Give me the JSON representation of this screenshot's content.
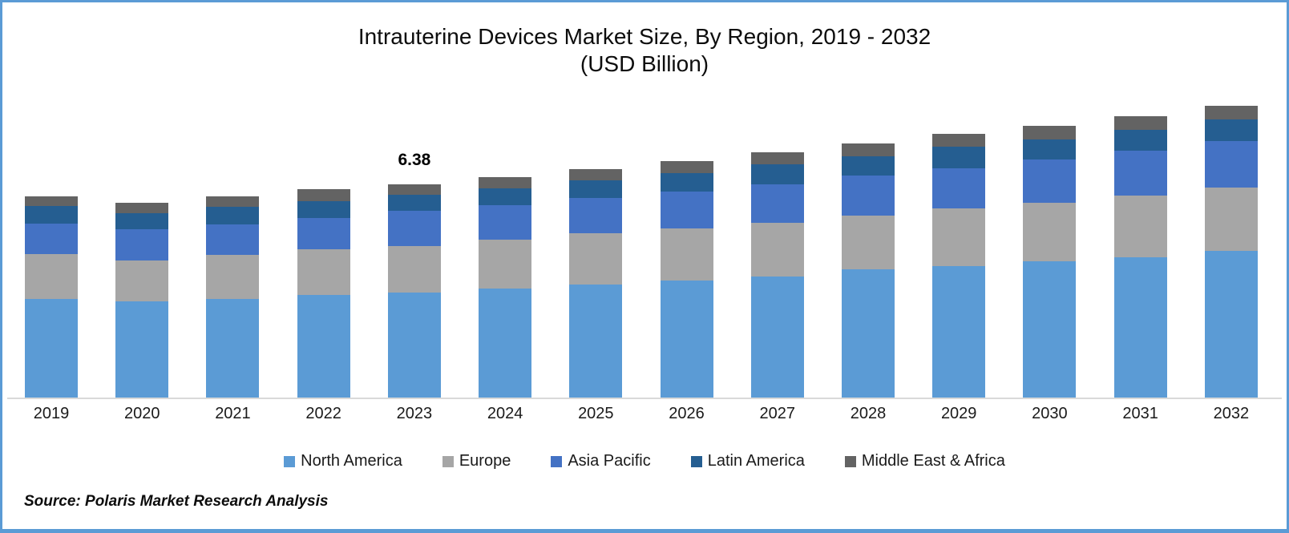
{
  "title": {
    "line1": "Intrauterine Devices Market Size, By Region, 2019 - 2032",
    "line2": "(USD Billion)"
  },
  "source_note": "Source: Polaris Market Research Analysis",
  "annotation": {
    "category": "2023",
    "text": "6.38"
  },
  "colors": {
    "frame_border": "#5B9BD5",
    "axis_line": "#D9D9D9",
    "north_america": "#5B9BD5",
    "europe": "#A6A6A6",
    "asia_pacific": "#4472C4",
    "latin_america": "#255E91",
    "middle_east_africa": "#636363"
  },
  "chart_data": {
    "type": "bar",
    "stacked": true,
    "title": "Intrauterine Devices Market Size, By Region, 2019 - 2032 (USD Billion)",
    "ylabel": "USD Billion",
    "xlabel": "",
    "grid": false,
    "legend_position": "bottom",
    "ylim": [
      0,
      9
    ],
    "categories": [
      "2019",
      "2020",
      "2021",
      "2022",
      "2023",
      "2024",
      "2025",
      "2026",
      "2027",
      "2028",
      "2029",
      "2030",
      "2031",
      "2032"
    ],
    "series": [
      {
        "name": "North America",
        "color": "#5B9BD5",
        "values": [
          2.95,
          2.87,
          2.95,
          3.07,
          3.15,
          3.26,
          3.38,
          3.5,
          3.63,
          3.83,
          3.93,
          4.08,
          4.2,
          4.39
        ]
      },
      {
        "name": "Europe",
        "color": "#A6A6A6",
        "values": [
          1.35,
          1.24,
          1.32,
          1.36,
          1.39,
          1.46,
          1.53,
          1.56,
          1.61,
          1.62,
          1.72,
          1.75,
          1.85,
          1.89
        ]
      },
      {
        "name": "Asia Pacific",
        "color": "#4472C4",
        "values": [
          0.9,
          0.92,
          0.92,
          0.94,
          1.04,
          1.03,
          1.05,
          1.11,
          1.13,
          1.19,
          1.22,
          1.3,
          1.34,
          1.4
        ]
      },
      {
        "name": "Latin America",
        "color": "#255E91",
        "values": [
          0.53,
          0.48,
          0.52,
          0.51,
          0.5,
          0.5,
          0.53,
          0.55,
          0.62,
          0.58,
          0.64,
          0.6,
          0.62,
          0.65
        ]
      },
      {
        "name": "Middle East & Africa",
        "color": "#636363",
        "values": [
          0.3,
          0.32,
          0.3,
          0.35,
          0.3,
          0.34,
          0.35,
          0.35,
          0.36,
          0.38,
          0.37,
          0.4,
          0.42,
          0.41
        ]
      }
    ],
    "totals": [
      6.03,
      5.83,
      6.01,
      6.23,
      6.38,
      6.59,
      6.84,
      7.07,
      7.35,
      7.6,
      7.88,
      8.13,
      8.43,
      8.74
    ],
    "data_labels": [
      {
        "category": "2023",
        "value": 6.38
      }
    ]
  }
}
